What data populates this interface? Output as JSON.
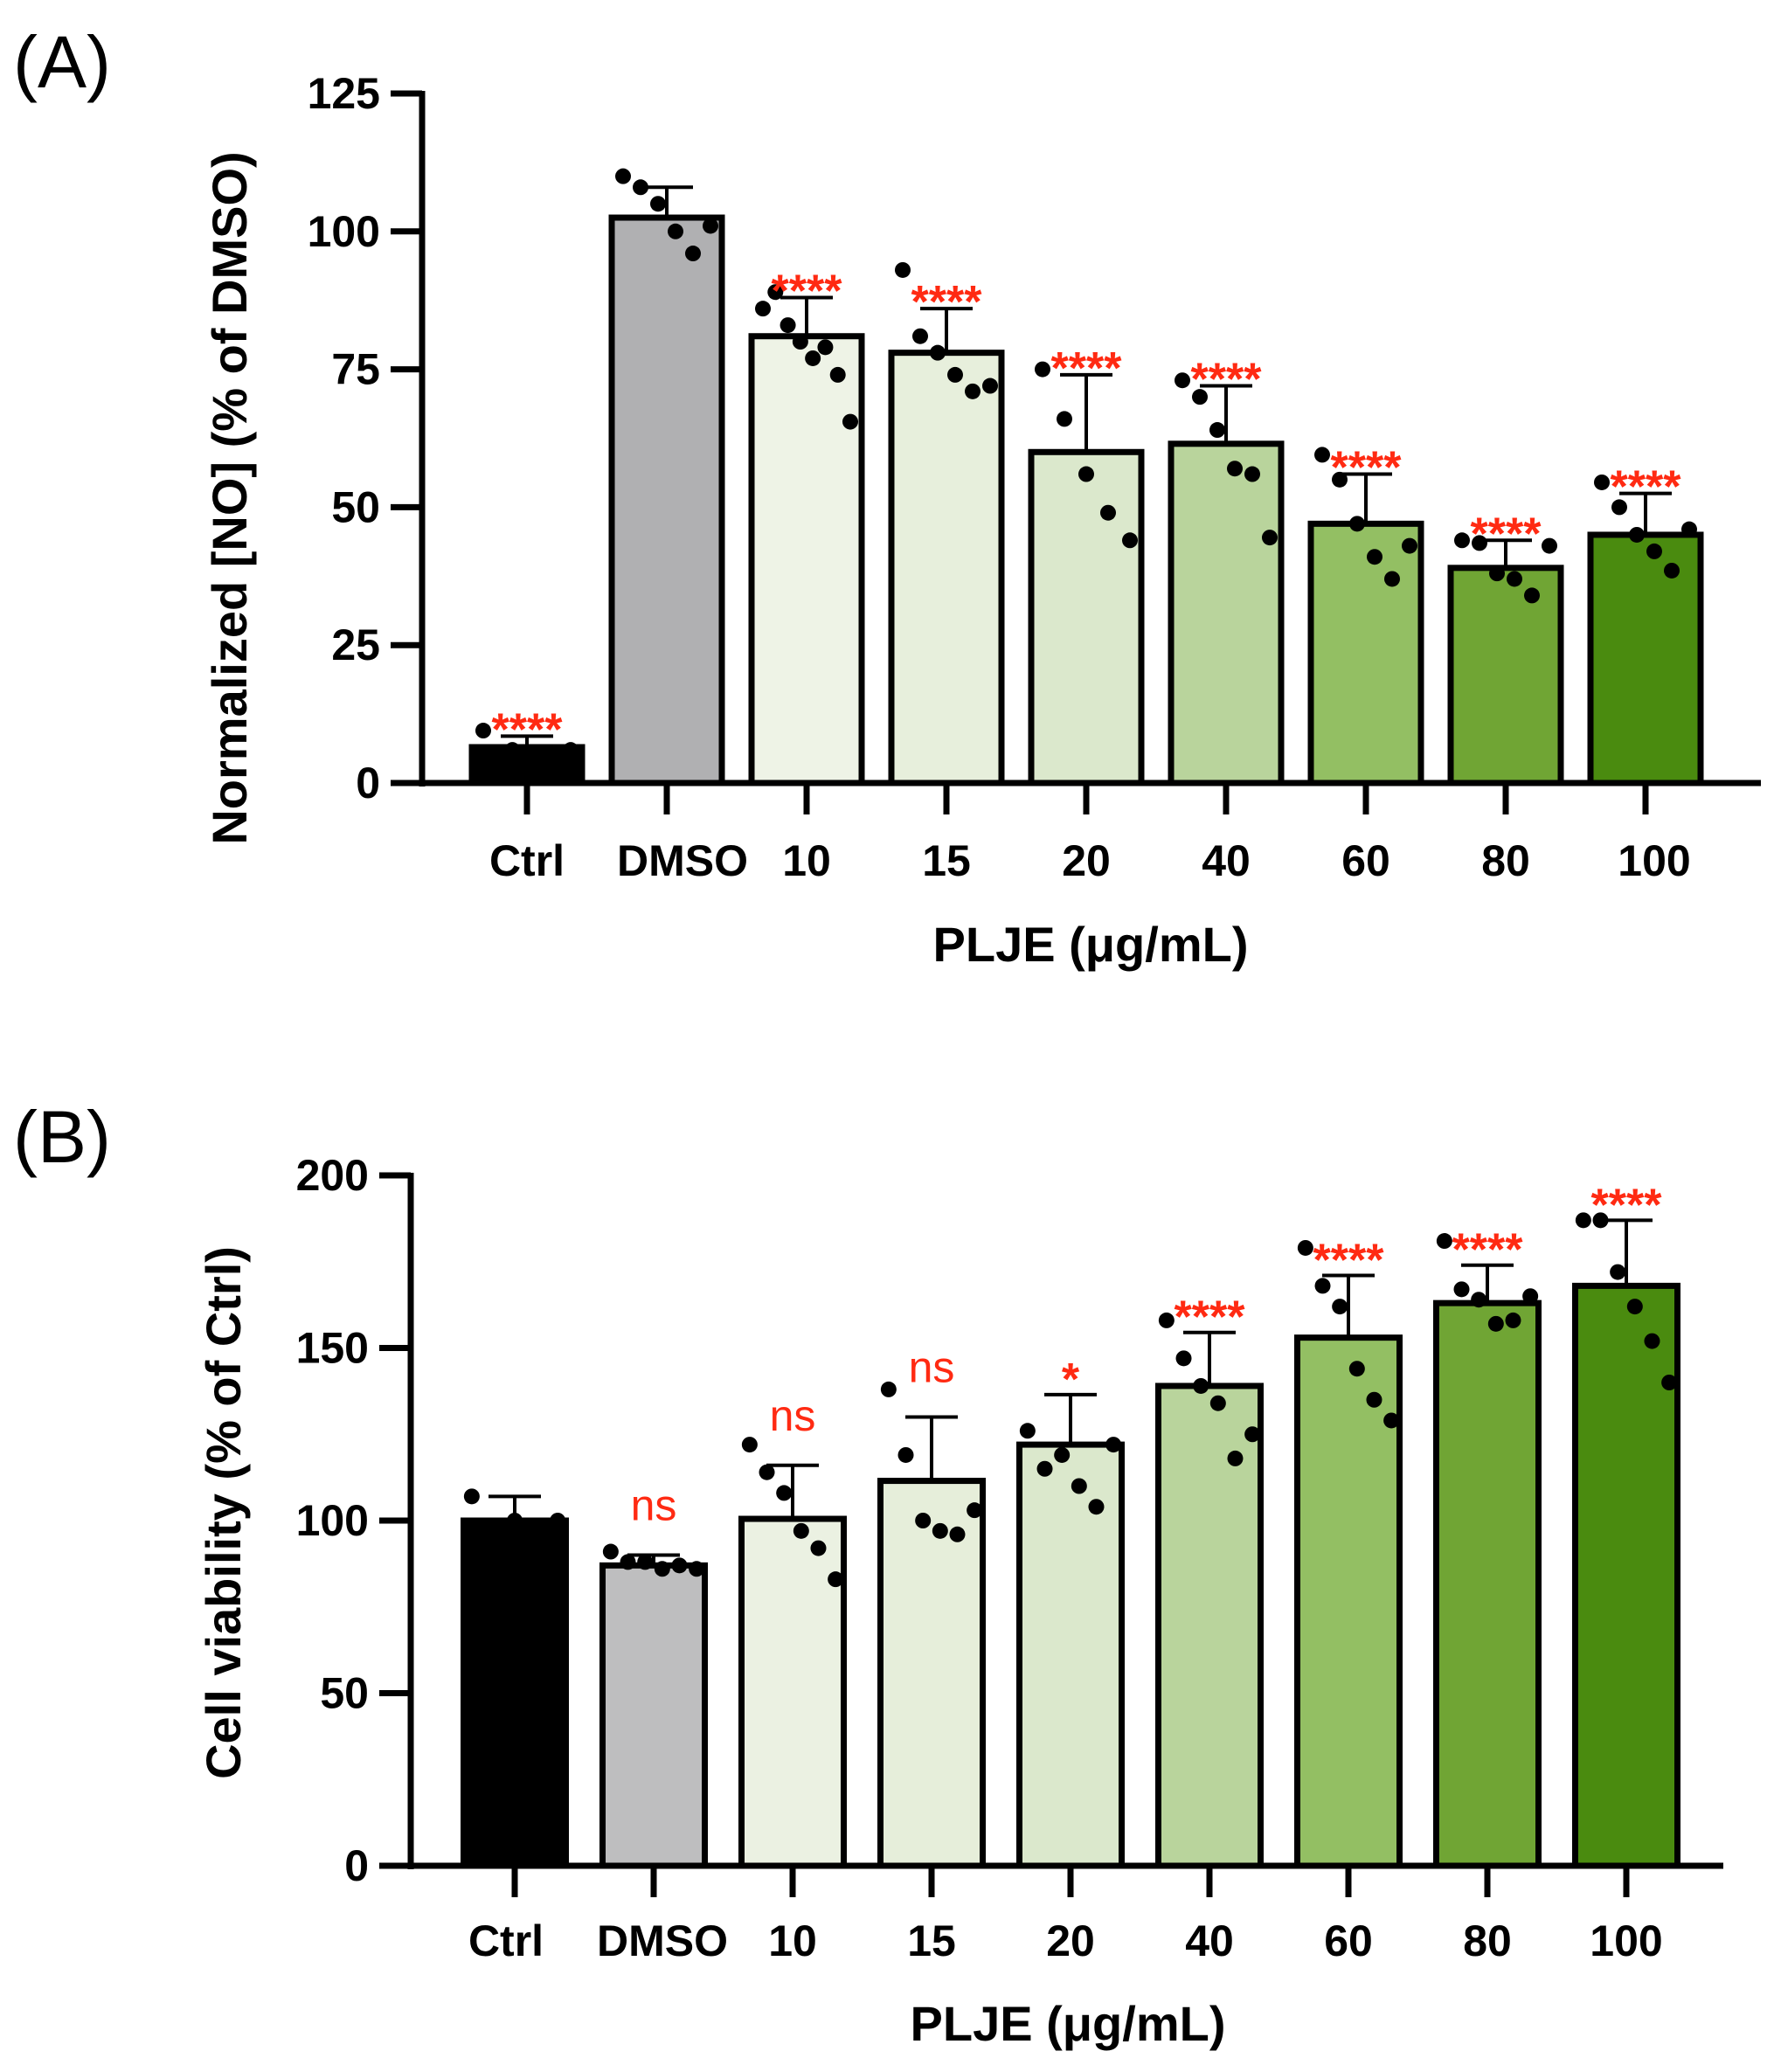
{
  "chart_data": [
    {
      "panel_label": "(A)",
      "type": "bar",
      "title": "",
      "xlabel": "PLJE (μg/mL)",
      "ylabel": "Normalized [NO] (% of DMSO)",
      "ylim": [
        0,
        125
      ],
      "yticks": [
        "0",
        "25",
        "50",
        "75",
        "100",
        "125"
      ],
      "categories": [
        "Ctrl",
        "DMSO",
        "10",
        "15",
        "20",
        "40",
        "60",
        "80",
        "100"
      ],
      "values": [
        6.5,
        102.5,
        81,
        78,
        60,
        61.5,
        47,
        39,
        45
      ],
      "error_upper": [
        8.5,
        108,
        88,
        86,
        74,
        72,
        56,
        44,
        52.5
      ],
      "points": [
        [
          9.5,
          6,
          5.5,
          6
        ],
        [
          110,
          108,
          105,
          100,
          96,
          101
        ],
        [
          86,
          89,
          83,
          80,
          77,
          79,
          74,
          65.5
        ],
        [
          93,
          81,
          78,
          74,
          71,
          72
        ],
        [
          75,
          66,
          56,
          49,
          44
        ],
        [
          73,
          70,
          64,
          57,
          56,
          44.5
        ],
        [
          59.5,
          55,
          47,
          41,
          37,
          43
        ],
        [
          44,
          43.5,
          38,
          37,
          34,
          43
        ],
        [
          54.5,
          50,
          45,
          42,
          38.5,
          46
        ]
      ],
      "significance": [
        "****",
        "",
        "****",
        "****",
        "****",
        "****",
        "****",
        "****",
        "****"
      ],
      "colors": [
        "#000000",
        "#b0b0b2",
        "#eef3e6",
        "#e7efdc",
        "#dbe8cc",
        "#b9d49c",
        "#93bf63",
        "#70a534",
        "#4a8b0f"
      ]
    },
    {
      "panel_label": "(B)",
      "type": "bar",
      "title": "",
      "xlabel": "PLJE (μg/mL)",
      "ylabel": "Cell viability (% of Ctrl)",
      "ylim": [
        0,
        200
      ],
      "yticks": [
        "0",
        "50",
        "100",
        "150",
        "200"
      ],
      "categories": [
        "Ctrl",
        "DMSO",
        "10",
        "15",
        "20",
        "40",
        "60",
        "80",
        "100"
      ],
      "values": [
        100,
        87,
        100.5,
        111.5,
        122,
        139,
        153,
        163,
        168
      ],
      "error_upper": [
        107,
        90,
        116,
        130,
        136.5,
        154.5,
        171,
        174,
        187
      ],
      "points": [
        [
          107,
          100,
          100
        ],
        [
          91,
          88,
          88,
          86,
          87,
          86
        ],
        [
          122,
          114,
          108,
          97,
          92,
          83
        ],
        [
          138,
          119,
          100,
          97,
          96,
          103
        ],
        [
          126,
          115,
          119,
          110,
          104,
          122
        ],
        [
          158,
          147,
          139,
          134,
          118,
          125
        ],
        [
          179,
          168,
          162,
          144,
          135,
          129
        ],
        [
          181,
          167,
          164,
          157,
          158,
          165
        ],
        [
          187,
          187,
          172,
          162,
          152,
          140
        ]
      ],
      "significance": [
        "",
        "ns",
        "ns",
        "ns",
        "*",
        "****",
        "****",
        "****",
        "****"
      ],
      "colors": [
        "#000000",
        "#bebebf",
        "#ebf1e2",
        "#e6eeda",
        "#dbe8cc",
        "#b9d49c",
        "#93bf63",
        "#70a534",
        "#4a8b0f"
      ]
    }
  ]
}
